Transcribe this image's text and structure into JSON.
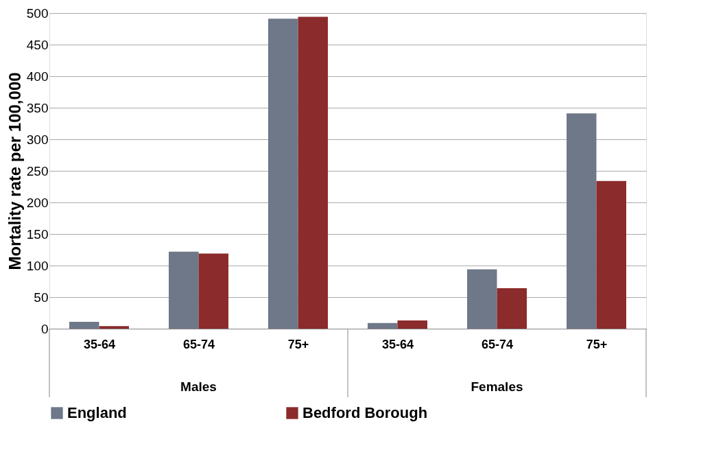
{
  "chart_data": {
    "type": "bar",
    "ylabel": "Mortality rate per 100,000",
    "categories": [
      "35-64",
      "65-74",
      "75+",
      "35-64",
      "65-74",
      "75+"
    ],
    "annotations": [
      "Males",
      "Females"
    ],
    "series": [
      {
        "name": "England",
        "color": "#6f7888",
        "values": [
          11,
          122,
          491,
          9,
          94,
          341
        ]
      },
      {
        "name": "Bedford Borough",
        "color": "#8b2b2b",
        "values": [
          4,
          119,
          494,
          13,
          64,
          234
        ]
      }
    ],
    "ylim": [
      0,
      500
    ],
    "yticks": [
      0,
      50,
      100,
      150,
      200,
      250,
      300,
      350,
      400,
      450,
      500
    ],
    "grid": "y",
    "legend": "bottom"
  }
}
